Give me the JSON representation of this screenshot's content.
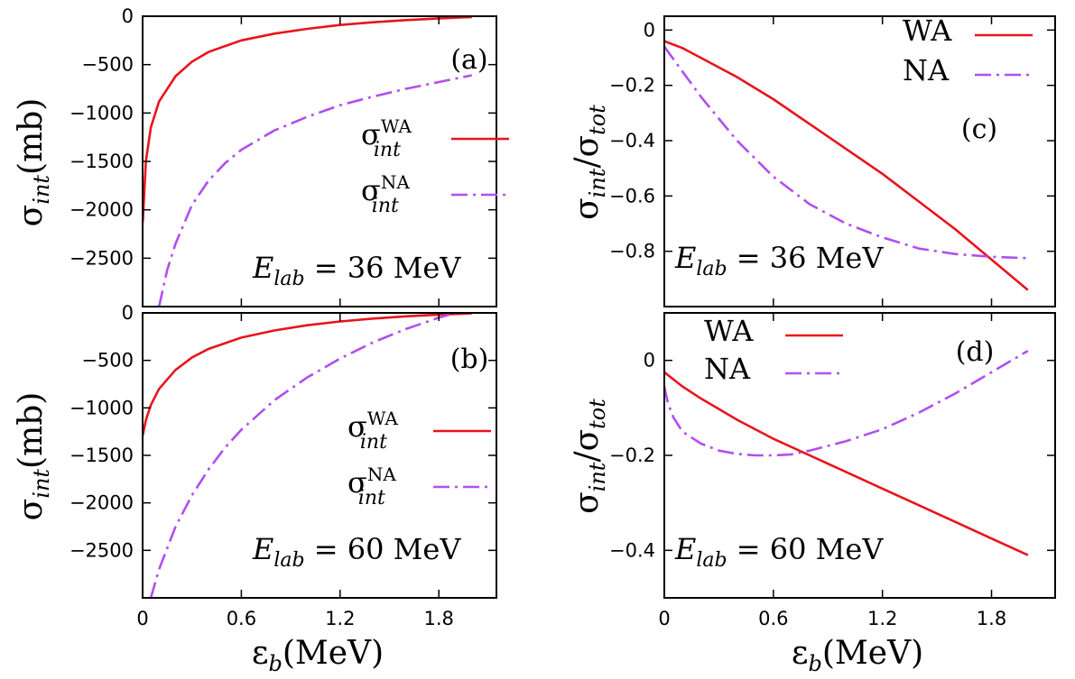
{
  "colors": {
    "wa": "#e8141c",
    "na": "#b14ef0",
    "axis": "#000000"
  },
  "figure": {
    "xlabel": {
      "main": "ε",
      "sub": "b",
      "unit": "(MeV)"
    }
  },
  "chart_data": [
    {
      "id": "a",
      "type": "line",
      "panel_label": "(a)",
      "annotation": {
        "main": "E",
        "sub": "lab",
        "eq": " = 36 MeV"
      },
      "ylabel": {
        "main": "σ",
        "sub": "int",
        "unit": "(mb)"
      },
      "xlim": [
        0,
        2.15
      ],
      "ylim": [
        -3000,
        0
      ],
      "xticks": [
        0,
        0.6,
        1.2,
        1.8
      ],
      "xtick_labels": [
        "",
        "",
        "",
        ""
      ],
      "yticks": [
        0,
        -500,
        -1000,
        -1500,
        -2000,
        -2500
      ],
      "ytick_labels": [
        "0",
        "−500",
        "−1000",
        "−1500",
        "−2000",
        "−2500"
      ],
      "legend": [
        {
          "name": "σ",
          "sub": "int",
          "sup": "WA",
          "style": "solid"
        },
        {
          "name": "σ",
          "sub": "int",
          "sup": "NA",
          "style": "dashdot"
        }
      ],
      "series": [
        {
          "name": "WA",
          "style": "solid",
          "x": [
            0.001,
            0.02,
            0.05,
            0.1,
            0.2,
            0.3,
            0.4,
            0.6,
            0.8,
            1.0,
            1.2,
            1.4,
            1.6,
            1.8,
            2.0
          ],
          "y": [
            -2130,
            -1500,
            -1150,
            -880,
            -620,
            -470,
            -370,
            -250,
            -180,
            -130,
            -90,
            -62,
            -40,
            -22,
            -8
          ]
        },
        {
          "name": "NA",
          "style": "dashdot",
          "x": [
            0.1,
            0.15,
            0.2,
            0.3,
            0.4,
            0.5,
            0.6,
            0.8,
            1.0,
            1.2,
            1.4,
            1.6,
            1.8,
            2.0
          ],
          "y": [
            -3000,
            -2620,
            -2350,
            -1950,
            -1700,
            -1520,
            -1380,
            -1180,
            -1040,
            -920,
            -830,
            -750,
            -680,
            -610
          ]
        }
      ]
    },
    {
      "id": "b",
      "type": "line",
      "panel_label": "(b)",
      "annotation": {
        "main": "E",
        "sub": "lab",
        "eq": " = 60 MeV"
      },
      "ylabel": {
        "main": "σ",
        "sub": "int",
        "unit": "(mb)"
      },
      "xlim": [
        0,
        2.15
      ],
      "ylim": [
        -3000,
        0
      ],
      "xticks": [
        0,
        0.6,
        1.2,
        1.8
      ],
      "xtick_labels": [
        "0",
        "0.6",
        "1.2",
        "1.8"
      ],
      "yticks": [
        0,
        -500,
        -1000,
        -1500,
        -2000,
        -2500
      ],
      "ytick_labels": [
        "0",
        "−500",
        "−1000",
        "−1500",
        "−2000",
        "−2500"
      ],
      "legend": [
        {
          "name": "σ",
          "sub": "int",
          "sup": "WA",
          "style": "solid"
        },
        {
          "name": "σ",
          "sub": "int",
          "sup": "NA",
          "style": "dashdot"
        }
      ],
      "series": [
        {
          "name": "WA",
          "style": "solid",
          "x": [
            0.001,
            0.02,
            0.05,
            0.1,
            0.2,
            0.3,
            0.4,
            0.6,
            0.8,
            1.0,
            1.2,
            1.4,
            1.6,
            1.8,
            2.0
          ],
          "y": [
            -1290,
            -1130,
            -970,
            -800,
            -600,
            -470,
            -380,
            -260,
            -185,
            -130,
            -90,
            -60,
            -36,
            -18,
            -5
          ]
        },
        {
          "name": "NA",
          "style": "dashdot",
          "x": [
            0.05,
            0.1,
            0.2,
            0.3,
            0.4,
            0.5,
            0.6,
            0.8,
            1.0,
            1.2,
            1.4,
            1.6,
            1.8,
            1.9,
            2.0
          ],
          "y": [
            -3000,
            -2700,
            -2250,
            -1920,
            -1650,
            -1420,
            -1230,
            -920,
            -680,
            -480,
            -310,
            -170,
            -50,
            0,
            20
          ]
        }
      ]
    },
    {
      "id": "c",
      "type": "line",
      "panel_label": "(c)",
      "annotation": {
        "main": "E",
        "sub": "lab",
        "eq": " = 36 MeV"
      },
      "ylabel": {
        "main": "σ",
        "sub": "int",
        "sep": "/",
        "main2": "σ",
        "sub2": "tot"
      },
      "xlim": [
        0,
        2.15
      ],
      "ylim": [
        -1.0,
        0.05
      ],
      "xticks": [
        0,
        0.6,
        1.2,
        1.8
      ],
      "xtick_labels": [
        "",
        "",
        "",
        ""
      ],
      "yticks": [
        0,
        -0.2,
        -0.4,
        -0.6,
        -0.8
      ],
      "ytick_labels": [
        "0",
        "−0.2",
        "−0.4",
        "−0.6",
        "−0.8"
      ],
      "legend": [
        {
          "name": "WA",
          "style": "solid"
        },
        {
          "name": "NA",
          "style": "dashdot"
        }
      ],
      "series": [
        {
          "name": "WA",
          "style": "solid",
          "x": [
            0,
            0.1,
            0.2,
            0.4,
            0.6,
            0.8,
            1.0,
            1.2,
            1.4,
            1.6,
            1.8,
            2.0
          ],
          "y": [
            -0.04,
            -0.065,
            -0.1,
            -0.17,
            -0.25,
            -0.34,
            -0.43,
            -0.52,
            -0.62,
            -0.72,
            -0.83,
            -0.94
          ]
        },
        {
          "name": "NA",
          "style": "dashdot",
          "x": [
            0,
            0.1,
            0.2,
            0.3,
            0.4,
            0.6,
            0.8,
            1.0,
            1.2,
            1.4,
            1.6,
            1.8,
            2.0
          ],
          "y": [
            -0.06,
            -0.15,
            -0.24,
            -0.32,
            -0.4,
            -0.53,
            -0.63,
            -0.7,
            -0.75,
            -0.79,
            -0.81,
            -0.82,
            -0.825
          ]
        }
      ]
    },
    {
      "id": "d",
      "type": "line",
      "panel_label": "(d)",
      "annotation": {
        "main": "E",
        "sub": "lab",
        "eq": " = 60 MeV"
      },
      "ylabel": {
        "main": "σ",
        "sub": "int",
        "sep": "/",
        "main2": "σ",
        "sub2": "tot"
      },
      "xlim": [
        0,
        2.15
      ],
      "ylim": [
        -0.5,
        0.1
      ],
      "xticks": [
        0,
        0.6,
        1.2,
        1.8
      ],
      "xtick_labels": [
        "0",
        "0.6",
        "1.2",
        "1.8"
      ],
      "yticks": [
        0,
        -0.2,
        -0.4
      ],
      "ytick_labels": [
        "0",
        "−0.2",
        "−0.4"
      ],
      "legend": [
        {
          "name": "WA",
          "style": "solid"
        },
        {
          "name": "NA",
          "style": "dashdot"
        }
      ],
      "series": [
        {
          "name": "WA",
          "style": "solid",
          "x": [
            0,
            0.1,
            0.2,
            0.4,
            0.6,
            0.8,
            1.0,
            1.2,
            1.4,
            1.6,
            1.8,
            2.0
          ],
          "y": [
            -0.025,
            -0.055,
            -0.08,
            -0.125,
            -0.165,
            -0.2,
            -0.235,
            -0.27,
            -0.305,
            -0.34,
            -0.375,
            -0.41
          ]
        },
        {
          "name": "NA",
          "style": "dashdot",
          "x": [
            0,
            0.02,
            0.05,
            0.1,
            0.2,
            0.3,
            0.4,
            0.5,
            0.6,
            0.7,
            0.8,
            1.0,
            1.2,
            1.4,
            1.6,
            1.8,
            2.0
          ],
          "y": [
            -0.055,
            -0.09,
            -0.12,
            -0.15,
            -0.175,
            -0.19,
            -0.197,
            -0.2,
            -0.2,
            -0.198,
            -0.19,
            -0.17,
            -0.145,
            -0.11,
            -0.07,
            -0.025,
            0.02
          ]
        }
      ]
    }
  ]
}
